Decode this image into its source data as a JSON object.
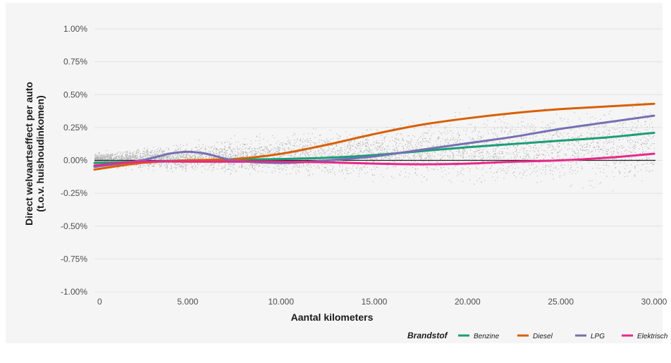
{
  "chart_data": {
    "type": "scatter",
    "xlabel": "Aantal kilometers",
    "ylabel_line1": "Direct welvaartseffect per auto",
    "ylabel_line2": "(t.o.v. huishoudinkomen)",
    "xlim": [
      0,
      30000
    ],
    "ylim": [
      -1.0,
      1.0
    ],
    "x_ticks": [
      0,
      5000,
      10000,
      15000,
      20000,
      25000,
      30000
    ],
    "x_tick_labels": [
      "0",
      "5.000",
      "10.000",
      "15.000",
      "20.000",
      "25.000",
      "30.000"
    ],
    "y_ticks": [
      1.0,
      0.75,
      0.5,
      0.25,
      0.0,
      -0.25,
      -0.5,
      -0.75,
      -1.0
    ],
    "y_tick_labels": [
      "1.00%",
      "0.75%",
      "0.50%",
      "0.25%",
      "0.00%",
      "-0.25%",
      "-0.50%",
      "-0.75%",
      "-1.00%"
    ],
    "grid": true,
    "reference_line_y": 0.0,
    "legend": {
      "title": "Brandstof",
      "placement": "bottom-right"
    },
    "scatter_color": "#9e9e9e",
    "series": [
      {
        "name": "Benzine",
        "color": "#1b9e77",
        "x": [
          0,
          2500,
          5000,
          7500,
          10000,
          12500,
          15000,
          17500,
          20000,
          22500,
          25000,
          27500,
          30000
        ],
        "y": [
          -0.02,
          -0.01,
          0.0,
          0.005,
          0.01,
          0.02,
          0.04,
          0.07,
          0.1,
          0.125,
          0.15,
          0.175,
          0.21
        ]
      },
      {
        "name": "Diesel",
        "color": "#d95f02",
        "x": [
          0,
          2500,
          5000,
          7500,
          10000,
          12500,
          15000,
          17500,
          20000,
          22500,
          25000,
          27500,
          30000
        ],
        "y": [
          -0.07,
          -0.02,
          0.0,
          0.01,
          0.05,
          0.12,
          0.2,
          0.27,
          0.32,
          0.36,
          0.39,
          0.41,
          0.43
        ]
      },
      {
        "name": "LPG",
        "color": "#7570b3",
        "x": [
          0,
          2500,
          4000,
          5000,
          6000,
          7500,
          10000,
          12500,
          15000,
          17500,
          20000,
          22500,
          25000,
          27500,
          30000
        ],
        "y": [
          -0.05,
          0.0,
          0.05,
          0.065,
          0.05,
          0.0,
          -0.02,
          0.0,
          0.03,
          0.08,
          0.13,
          0.18,
          0.24,
          0.29,
          0.34
        ]
      },
      {
        "name": "Elektrisch",
        "color": "#e7298a",
        "x": [
          0,
          2500,
          5000,
          7500,
          10000,
          12500,
          15000,
          17500,
          20000,
          22500,
          25000,
          27500,
          30000
        ],
        "y": [
          -0.04,
          -0.01,
          -0.01,
          -0.01,
          -0.01,
          -0.015,
          -0.025,
          -0.03,
          -0.025,
          -0.01,
          0.0,
          0.02,
          0.05
        ]
      }
    ]
  }
}
